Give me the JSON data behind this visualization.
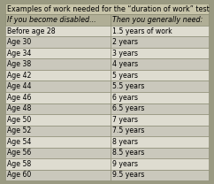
{
  "title": "Examples of work needed for the “duration of work” test",
  "col1_header": "If you become disabled...",
  "col2_header": "Then you generally need:",
  "rows": [
    [
      "Before age 28",
      "1.5 years of work"
    ],
    [
      "Age 30",
      "2 years"
    ],
    [
      "Age 34",
      "3 years"
    ],
    [
      "Age 38",
      "4 years"
    ],
    [
      "Age 42",
      "5 years"
    ],
    [
      "Age 44",
      "5.5 years"
    ],
    [
      "Age 46",
      "6 years"
    ],
    [
      "Age 48",
      "6.5 years"
    ],
    [
      "Age 50",
      "7 years"
    ],
    [
      "Age 52",
      "7.5 years"
    ],
    [
      "Age 54",
      "8 years"
    ],
    [
      "Age 56",
      "8.5 years"
    ],
    [
      "Age 58",
      "9 years"
    ],
    [
      "Age 60",
      "9.5 years"
    ]
  ],
  "outer_bg": "#9a9a82",
  "title_bg": "#c8c5aa",
  "subheader_bg": "#b0ae96",
  "row_bg_light": "#dedcd0",
  "row_bg_dark": "#cac8bc",
  "border_color": "#888870",
  "title_fontsize": 5.8,
  "header_fontsize": 5.8,
  "row_fontsize": 5.6,
  "figsize": [
    2.42,
    2.08
  ],
  "dpi": 100,
  "col_split": 0.515
}
